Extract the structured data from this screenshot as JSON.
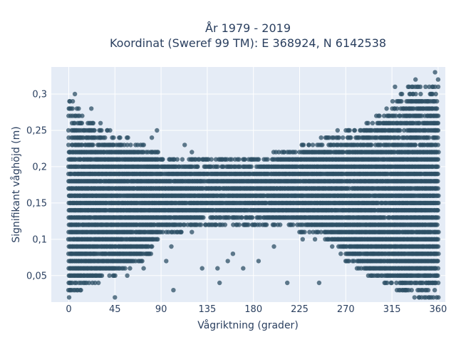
{
  "chart_data": {
    "type": "scatter",
    "title_line1": "År 1979 - 2019",
    "title_line2": "Koordinat (Sweref 99 TM): E 368924, N 6142538",
    "xlabel": "Vågriktning (grader)",
    "ylabel": "Signifikant våghöjd (m)",
    "xlim": [
      -17,
      367
    ],
    "ylim": [
      0.0135,
      0.3373
    ],
    "xticks": [
      0,
      45,
      90,
      135,
      180,
      225,
      270,
      315,
      360
    ],
    "xtick_labels": [
      "0",
      "45",
      "90",
      "135",
      "180",
      "225",
      "270",
      "315",
      "360"
    ],
    "yticks": [
      0.05,
      0.1,
      0.15,
      0.2,
      0.25,
      0.3
    ],
    "ytick_labels": [
      "0,05",
      "0,1",
      "0,15",
      "0,2",
      "0,25",
      "0,3"
    ],
    "grid": true,
    "marker_color": "#2d5066",
    "background": "#e5ecf6",
    "gridline_color": "#ffffff",
    "text_color": "#2a3f5f",
    "y_step": 0.01,
    "x_range": [
      0,
      360
    ],
    "dense_band_y": [
      0.05,
      0.22
    ],
    "upper_envelope": [
      [
        0,
        0.3
      ],
      [
        15,
        0.27
      ],
      [
        25,
        0.26
      ],
      [
        40,
        0.25
      ],
      [
        60,
        0.24
      ],
      [
        75,
        0.23
      ],
      [
        90,
        0.22
      ],
      [
        110,
        0.21
      ],
      [
        135,
        0.21
      ],
      [
        160,
        0.21
      ],
      [
        180,
        0.21
      ],
      [
        200,
        0.22
      ],
      [
        225,
        0.23
      ],
      [
        250,
        0.24
      ],
      [
        270,
        0.25
      ],
      [
        290,
        0.26
      ],
      [
        300,
        0.27
      ],
      [
        315,
        0.29
      ],
      [
        330,
        0.31
      ],
      [
        345,
        0.31
      ],
      [
        360,
        0.31
      ]
    ],
    "lower_envelope": [
      [
        0,
        0.02
      ],
      [
        15,
        0.03
      ],
      [
        30,
        0.04
      ],
      [
        45,
        0.05
      ],
      [
        60,
        0.06
      ],
      [
        75,
        0.07
      ],
      [
        90,
        0.1
      ],
      [
        110,
        0.11
      ],
      [
        135,
        0.12
      ],
      [
        180,
        0.12
      ],
      [
        225,
        0.11
      ],
      [
        250,
        0.1
      ],
      [
        270,
        0.07
      ],
      [
        290,
        0.05
      ],
      [
        305,
        0.04
      ],
      [
        320,
        0.03
      ],
      [
        335,
        0.02
      ],
      [
        360,
        0.02
      ]
    ],
    "outliers": [
      [
        45,
        0.02
      ],
      [
        147,
        0.04
      ],
      [
        213,
        0.04
      ],
      [
        244,
        0.04
      ],
      [
        130,
        0.06
      ],
      [
        145,
        0.06
      ],
      [
        170,
        0.06
      ],
      [
        185,
        0.07
      ],
      [
        160,
        0.08
      ],
      [
        155,
        0.07
      ],
      [
        200,
        0.09
      ],
      [
        120,
        0.11
      ],
      [
        240,
        0.1
      ],
      [
        102,
        0.03
      ],
      [
        73,
        0.06
      ],
      [
        57,
        0.05
      ],
      [
        228,
        0.1
      ],
      [
        249,
        0.22
      ],
      [
        255,
        0.23
      ],
      [
        246,
        0.24
      ],
      [
        262,
        0.25
      ],
      [
        228,
        0.2
      ],
      [
        234,
        0.23
      ],
      [
        86,
        0.25
      ],
      [
        81,
        0.24
      ],
      [
        113,
        0.23
      ],
      [
        120,
        0.22
      ],
      [
        360,
        0.32
      ],
      [
        357,
        0.33
      ],
      [
        338,
        0.32
      ],
      [
        333,
        0.3
      ],
      [
        318,
        0.31
      ],
      [
        22,
        0.28
      ],
      [
        31,
        0.26
      ],
      [
        6,
        0.3
      ],
      [
        1,
        0.29
      ],
      [
        95,
        0.07
      ],
      [
        100,
        0.09
      ]
    ],
    "density_seed": 7
  }
}
